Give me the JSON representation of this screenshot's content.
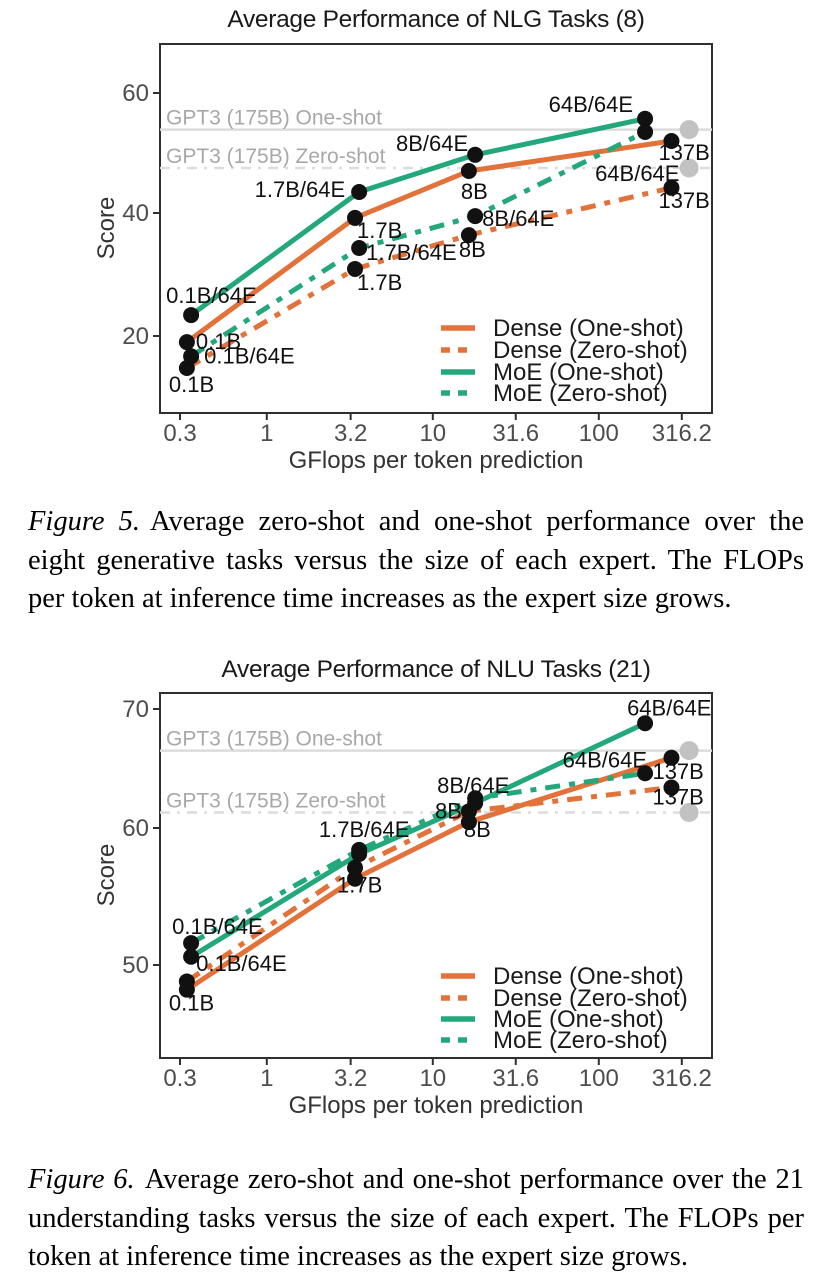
{
  "page": {
    "background": "#ffffff"
  },
  "colors": {
    "dense": "#E2713A",
    "moe": "#23A87C",
    "dot": "#111111",
    "gpt3_dot": "#C2C2C2",
    "ref_line": "#DCDCDC",
    "ref_text": "#A8A8A8",
    "border": "#2F2F2F"
  },
  "figures": [
    {
      "label": "Figure 5.",
      "text": "Average zero-shot and one-shot performance over the eight generative tasks versus the size of each expert. The FLOPs per token at inference time increases as the expert size grows."
    },
    {
      "label": "Figure 6.",
      "text": "Average zero-shot and one-shot performance over the 21 understanding tasks versus the size of each expert. The FLOPs per token at inference time increases as the expert size grows."
    }
  ],
  "chart_data": [
    {
      "type": "line",
      "title": "Average Performance of NLG Tasks (8)",
      "xlabel": "GFlops per token prediction",
      "ylabel": "Score",
      "x_scale": "log",
      "x_ticks": [
        0.3,
        1,
        3.2,
        10,
        31.6,
        100,
        316.2
      ],
      "x_tick_labels": [
        "0.3",
        "1",
        "3.2",
        "10",
        "31.6",
        "100",
        "316.2"
      ],
      "y_ticks": [
        20,
        40,
        60
      ],
      "ylim": [
        7,
        68
      ],
      "legend_position": "lower right",
      "grid": false,
      "reference_lines": [
        {
          "label": "GPT3 (175B) One-shot",
          "value": 53.9,
          "style": "solid",
          "dot_x": 350
        },
        {
          "label": "GPT3 (175B) Zero-shot",
          "value": 47.5,
          "style": "dashdot",
          "dot_x": 350
        }
      ],
      "series": [
        {
          "name": "Dense (One-shot)",
          "color_key": "dense",
          "style": "solid",
          "points": [
            {
              "x": 0.33,
              "y": 19.0,
              "label": "0.1B",
              "dx": 9,
              "dy": 7,
              "anchor": "start"
            },
            {
              "x": 3.4,
              "y": 39.2,
              "label": "1.7B",
              "dx": 2,
              "dy": 20,
              "anchor": "start"
            },
            {
              "x": 16.5,
              "y": 47.0,
              "label": "8B",
              "dx": -8,
              "dy": 28,
              "anchor": "start"
            },
            {
              "x": 274,
              "y": 52.0,
              "label": "137B",
              "dx": -13,
              "dy": 19,
              "anchor": "start"
            }
          ]
        },
        {
          "name": "Dense (Zero-shot)",
          "color_key": "dense",
          "style": "dashed",
          "points": [
            {
              "x": 0.33,
              "y": 14.8,
              "label": "0.1B",
              "dx": -18,
              "dy": 24,
              "anchor": "start"
            },
            {
              "x": 3.4,
              "y": 30.9,
              "label": "1.7B",
              "dx": 2,
              "dy": 21,
              "anchor": "start"
            },
            {
              "x": 16.5,
              "y": 36.4,
              "label": "8B",
              "dx": -10,
              "dy": 22,
              "anchor": "start"
            },
            {
              "x": 274,
              "y": 44.2,
              "label": "137B",
              "dx": -13,
              "dy": 20,
              "anchor": "start"
            }
          ]
        },
        {
          "name": "MoE (One-shot)",
          "color_key": "moe",
          "style": "solid",
          "points": [
            {
              "x": 0.35,
              "y": 23.4,
              "label": "0.1B/64E",
              "dx": -25,
              "dy": -12,
              "anchor": "start"
            },
            {
              "x": 3.6,
              "y": 43.5,
              "label": "1.7B/64E",
              "dx": -14,
              "dy": 5,
              "anchor": "end"
            },
            {
              "x": 18,
              "y": 49.7,
              "label": "8B/64E",
              "dx": -7,
              "dy": -4,
              "anchor": "end"
            },
            {
              "x": 190,
              "y": 55.7,
              "label": "64B/64E",
              "dx": -12,
              "dy": -7,
              "anchor": "end"
            }
          ]
        },
        {
          "name": "MoE (Zero-shot)",
          "color_key": "moe",
          "style": "dashed",
          "points": [
            {
              "x": 0.35,
              "y": 16.7,
              "label": "0.1B/64E",
              "dx": 13,
              "dy": 7,
              "anchor": "start"
            },
            {
              "x": 3.6,
              "y": 34.3,
              "label": "1.7B/64E",
              "dx": 7,
              "dy": 12,
              "anchor": "start"
            },
            {
              "x": 18,
              "y": 39.5,
              "label": "8B/64E",
              "dx": 7,
              "dy": 10,
              "anchor": "start"
            },
            {
              "x": 190,
              "y": 53.5,
              "label": "64B/64E",
              "dx": -50,
              "dy": 49,
              "anchor": "start"
            }
          ]
        }
      ]
    },
    {
      "type": "line",
      "title": "Average Performance of NLU Tasks (21)",
      "xlabel": "GFlops per token prediction",
      "ylabel": "Score",
      "x_scale": "log",
      "x_ticks": [
        0.3,
        1,
        3.2,
        10,
        31.6,
        100,
        316.2
      ],
      "x_tick_labels": [
        "0.3",
        "1",
        "3.2",
        "10",
        "31.6",
        "100",
        "316.2"
      ],
      "y_ticks": [
        50,
        60,
        70
      ],
      "ylim": [
        42,
        71.5
      ],
      "legend_position": "lower right",
      "grid": false,
      "reference_lines": [
        {
          "label": "GPT3 (175B) One-shot",
          "value": 66.5,
          "style": "solid",
          "dot_x": 350
        },
        {
          "label": "GPT3 (175B) Zero-shot",
          "value": 61.3,
          "style": "dashdot",
          "dot_x": 350
        }
      ],
      "series": [
        {
          "name": "Dense (One-shot)",
          "color_key": "dense",
          "style": "solid",
          "points": [
            {
              "x": 0.33,
              "y": 48.2,
              "label": "0.1B",
              "dx": -18,
              "dy": 21,
              "anchor": "start"
            },
            {
              "x": 3.4,
              "y": 56.3,
              "label": "1.7B",
              "dx": -18,
              "dy": 14,
              "anchor": "start"
            },
            {
              "x": 16.5,
              "y": 60.5,
              "label": "8B",
              "dx": -5,
              "dy": 15,
              "anchor": "start"
            },
            {
              "x": 274,
              "y": 65.9,
              "label": "137B",
              "dx": -19,
              "dy": 21,
              "anchor": "start"
            }
          ]
        },
        {
          "name": "Dense (Zero-shot)",
          "color_key": "dense",
          "style": "dashed",
          "points": [
            {
              "x": 0.33,
              "y": 48.8,
              "label": "",
              "dx": 0,
              "dy": 0,
              "anchor": "start"
            },
            {
              "x": 3.4,
              "y": 57.1,
              "label": "",
              "dx": 0,
              "dy": 0,
              "anchor": "start"
            },
            {
              "x": 16.5,
              "y": 61.4,
              "label": "8B",
              "dx": -7,
              "dy": 7,
              "anchor": "end"
            },
            {
              "x": 274,
              "y": 63.4,
              "label": "137B",
              "dx": -19,
              "dy": 17,
              "anchor": "start"
            }
          ]
        },
        {
          "name": "MoE (One-shot)",
          "color_key": "moe",
          "style": "solid",
          "points": [
            {
              "x": 0.35,
              "y": 50.6,
              "label": "0.1B/64E",
              "dx": 5,
              "dy": 14,
              "anchor": "start"
            },
            {
              "x": 3.6,
              "y": 58.1,
              "label": "1.7B/64E",
              "dx": 5,
              "dy": -17,
              "anchor": "middle"
            },
            {
              "x": 18,
              "y": 62.1,
              "label": "8B/64E",
              "dx": -2,
              "dy": -10,
              "anchor": "middle"
            },
            {
              "x": 190,
              "y": 68.8,
              "label": "64B/64E",
              "dx": -18,
              "dy": -8,
              "anchor": "start"
            }
          ]
        },
        {
          "name": "MoE (Zero-shot)",
          "color_key": "moe",
          "style": "dashed",
          "points": [
            {
              "x": 0.35,
              "y": 51.6,
              "label": "0.1B/64E",
              "dx": -19,
              "dy": -9,
              "anchor": "start"
            },
            {
              "x": 3.6,
              "y": 58.4,
              "label": "",
              "dx": 0,
              "dy": 0,
              "anchor": "start"
            },
            {
              "x": 18,
              "y": 62.5,
              "label": "",
              "dx": 0,
              "dy": 0,
              "anchor": "start"
            },
            {
              "x": 190,
              "y": 64.6,
              "label": "64B/64E",
              "dx": 2,
              "dy": -6,
              "anchor": "end"
            }
          ]
        }
      ]
    }
  ]
}
